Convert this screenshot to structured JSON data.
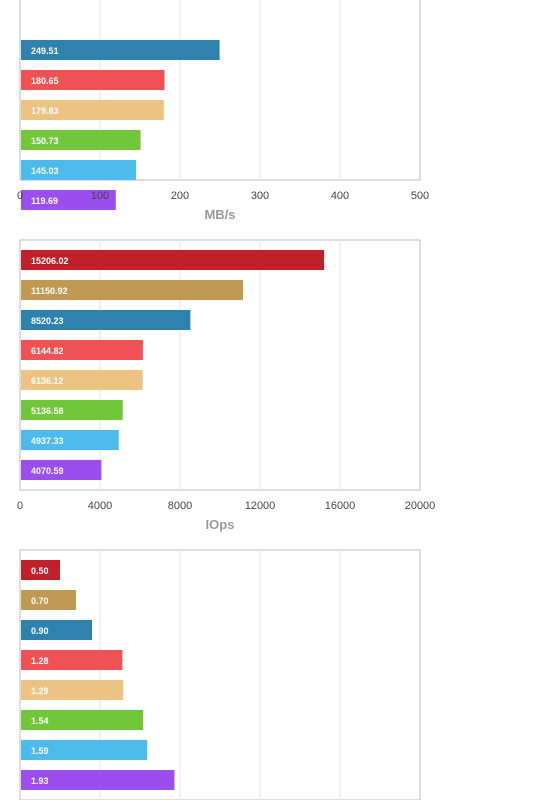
{
  "colors": [
    "#c0202a",
    "#c09a52",
    "#2e82ad",
    "#ef5254",
    "#ecc383",
    "#72c63a",
    "#4cbbec",
    "#9b4ded"
  ],
  "chart_data": [
    {
      "type": "bar",
      "orientation": "horizontal",
      "values": [
        null,
        null,
        249.51,
        180.65,
        179.83,
        150.73,
        145.03,
        119.69
      ],
      "value_labels": [
        "",
        "",
        "249.51",
        "180.65",
        "179.83",
        "150.73",
        "145.03",
        "119.69"
      ],
      "xlim": [
        0,
        500
      ],
      "xticks": [
        "0",
        "100",
        "200",
        "300",
        "400",
        "500"
      ],
      "xlabel": "MB/s",
      "grid": true
    },
    {
      "type": "bar",
      "orientation": "horizontal",
      "values": [
        15206.02,
        11150.92,
        8520.23,
        6144.82,
        6136.12,
        5136.58,
        4937.33,
        4070.59
      ],
      "value_labels": [
        "15206.02",
        "11150.92",
        "8520.23",
        "6144.82",
        "6136.12",
        "5136.58",
        "4937.33",
        "4070.59"
      ],
      "xlim": [
        0,
        20000
      ],
      "xticks": [
        "0",
        "4000",
        "8000",
        "12000",
        "16000",
        "20000"
      ],
      "xlabel": "IOps",
      "grid": true
    },
    {
      "type": "bar",
      "orientation": "horizontal",
      "values": [
        0.5,
        0.7,
        0.9,
        1.28,
        1.29,
        1.54,
        1.59,
        1.93
      ],
      "value_labels": [
        "0.50",
        "0.70",
        "0.90",
        "1.28",
        "1.29",
        "1.54",
        "1.59",
        "1.93"
      ],
      "xlim": [
        0,
        5
      ],
      "xticks": [],
      "xlabel": "",
      "grid": true
    }
  ]
}
